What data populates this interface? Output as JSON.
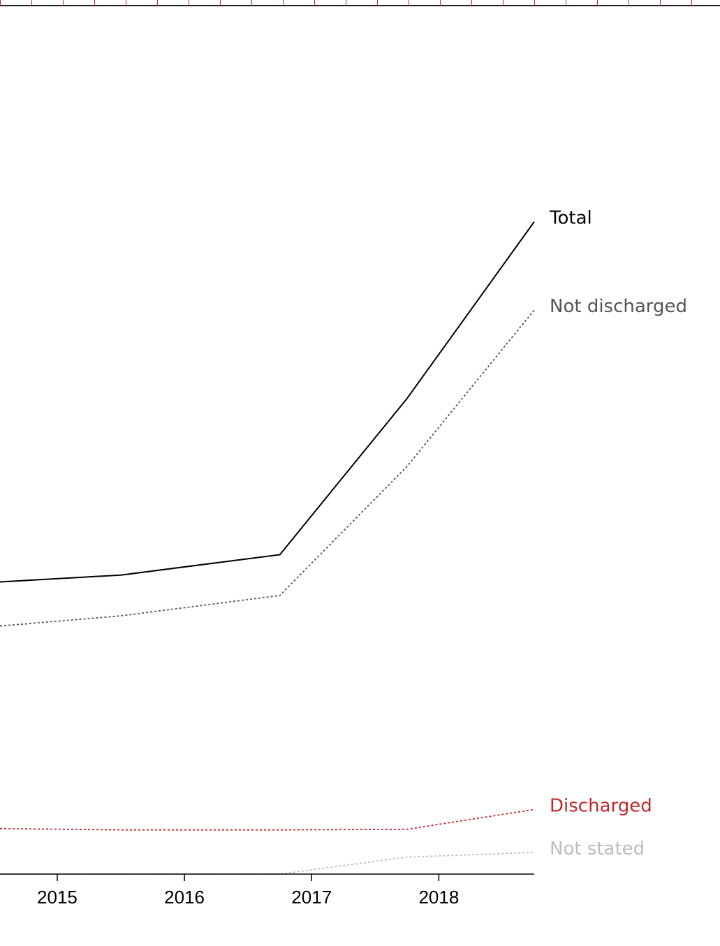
{
  "colors": {
    "total": "#000000",
    "not_discharged": "#555555",
    "discharged": "#c0282d",
    "not_stated": "#bdbdbd",
    "ruler": "#c0282d",
    "axis": "#000000"
  },
  "chart_data": {
    "type": "line",
    "title": "",
    "xlabel": "",
    "ylabel": "",
    "x_ticks": [
      "2015",
      "2016",
      "2017",
      "2018"
    ],
    "xlim": [
      2014.55,
      2018.75
    ],
    "ylim": [
      0,
      105
    ],
    "grid": false,
    "legend": "direct labels at right end of lines",
    "series": [
      {
        "name": "Total",
        "key": "total",
        "style": "solid",
        "x": [
          2014.55,
          2015.5,
          2016.75,
          2017.75,
          2018.75
        ],
        "y": [
          43,
          44,
          47,
          70,
          96
        ]
      },
      {
        "name": "Not discharged",
        "key": "not_discharged",
        "style": "dotted",
        "x": [
          2014.55,
          2015.5,
          2016.75,
          2017.75,
          2018.75
        ],
        "y": [
          36.5,
          38,
          41,
          60,
          83
        ]
      },
      {
        "name": "Discharged",
        "key": "discharged",
        "style": "dotted",
        "x": [
          2014.55,
          2015.5,
          2016.75,
          2017.75,
          2018.75
        ],
        "y": [
          6.7,
          6.5,
          6.5,
          6.6,
          9.5
        ]
      },
      {
        "name": "Not stated",
        "key": "not_stated",
        "style": "dotted",
        "x": [
          2014.55,
          2015.5,
          2016.75,
          2017.75,
          2018.75
        ],
        "y": [
          0,
          0,
          0,
          2.5,
          3.2
        ]
      }
    ]
  }
}
